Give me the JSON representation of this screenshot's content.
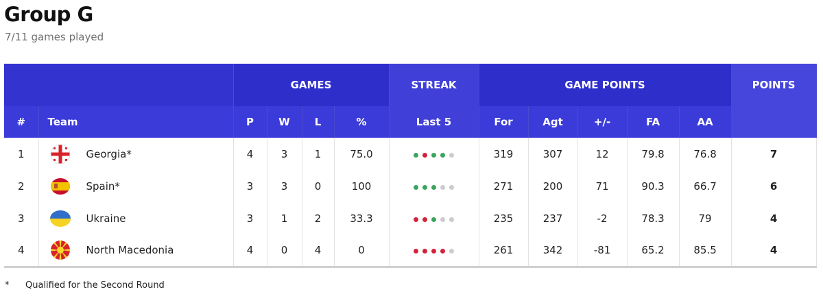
{
  "header": {
    "title": "Group G",
    "subtitle": "7/11 games played"
  },
  "colors": {
    "header_blue": "#2e2ecb",
    "win": "#3aa55d",
    "loss": "#d2233a",
    "empty": "#cccccc"
  },
  "table": {
    "group_headers": {
      "games": "GAMES",
      "streak": "STREAK",
      "game_points": "GAME POINTS",
      "points": "POINTS"
    },
    "columns": {
      "rank": "#",
      "team": "Team",
      "p": "P",
      "w": "W",
      "l": "L",
      "pct": "%",
      "last5": "Last 5",
      "for": "For",
      "agt": "Agt",
      "diff": "+/-",
      "fa": "FA",
      "aa": "AA"
    },
    "rows": [
      {
        "rank": "1",
        "team": "Georgia*",
        "flag": "georgia-flag-icon",
        "p": "4",
        "w": "3",
        "l": "1",
        "pct": "75.0",
        "streak": [
          "W",
          "L",
          "W",
          "W",
          "-"
        ],
        "for": "319",
        "agt": "307",
        "diff": "12",
        "fa": "79.8",
        "aa": "76.8",
        "points": "7"
      },
      {
        "rank": "2",
        "team": "Spain*",
        "flag": "spain-flag-icon",
        "p": "3",
        "w": "3",
        "l": "0",
        "pct": "100",
        "streak": [
          "W",
          "W",
          "W",
          "-",
          "-"
        ],
        "for": "271",
        "agt": "200",
        "diff": "71",
        "fa": "90.3",
        "aa": "66.7",
        "points": "6"
      },
      {
        "rank": "3",
        "team": "Ukraine",
        "flag": "ukraine-flag-icon",
        "p": "3",
        "w": "1",
        "l": "2",
        "pct": "33.3",
        "streak": [
          "L",
          "L",
          "W",
          "-",
          "-"
        ],
        "for": "235",
        "agt": "237",
        "diff": "-2",
        "fa": "78.3",
        "aa": "79",
        "points": "4"
      },
      {
        "rank": "4",
        "team": "North Macedonia",
        "flag": "north-macedonia-flag-icon",
        "p": "4",
        "w": "0",
        "l": "4",
        "pct": "0",
        "streak": [
          "L",
          "L",
          "L",
          "L",
          "-"
        ],
        "for": "261",
        "agt": "342",
        "diff": "-81",
        "fa": "65.2",
        "aa": "85.5",
        "points": "4"
      }
    ]
  },
  "footnote": {
    "mark": "*",
    "text": "Qualified for the Second Round"
  }
}
